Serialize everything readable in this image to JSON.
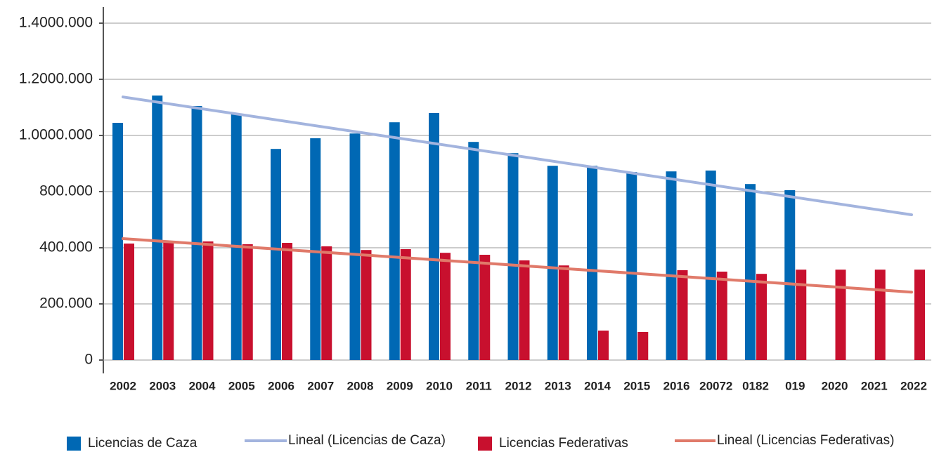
{
  "chart_data": {
    "type": "bar",
    "categories": [
      "2002",
      "2003",
      "2004",
      "2005",
      "2006",
      "2007",
      "2008",
      "2009",
      "2010",
      "2011",
      "2012",
      "2013",
      "2014",
      "2015",
      "2016",
      "20072",
      "0182",
      "019",
      "2020",
      "2021",
      "2022"
    ],
    "ylim": [
      0,
      1400000
    ],
    "yticks": [
      0,
      {
        "value": 200000,
        "label": "200.000"
      },
      {
        "value": 400000,
        "label": "400.000"
      },
      {
        "value": 800000,
        "label": "800.000"
      },
      {
        "value": 1000000,
        "label": "1.0000.000"
      },
      {
        "value": 1200000,
        "label": "1.2000.000"
      },
      {
        "value": 1400000,
        "label": "1.4000.000"
      }
    ],
    "grid": true,
    "series": [
      {
        "name": "Licencias de Caza",
        "color": "#0068b4",
        "values": [
          1045000,
          1142000,
          1105000,
          1075000,
          952000,
          990000,
          1007000,
          1047000,
          1080000,
          977000,
          937000,
          892000,
          892000,
          870000,
          872000,
          875000,
          827000,
          805000,
          null,
          null,
          null
        ]
      },
      {
        "name": "Licencias Federativas",
        "color": "#c8102e",
        "values": [
          430000,
          440000,
          445000,
          425000,
          435000,
          410000,
          392000,
          395000,
          382000,
          375000,
          355000,
          337000,
          105000,
          100000,
          320000,
          315000,
          307000,
          322000,
          322000,
          322000,
          322000
        ]
      }
    ],
    "trendlines": [
      {
        "name": "Lineal (Licencias de Caza)",
        "color": "#a3b4de",
        "values": [
          1137000,
          635000
        ]
      },
      {
        "name": "Lineal (Licencias Federativas)",
        "color": "#e07a6a",
        "values": [
          465000,
          242000
        ]
      }
    ]
  }
}
